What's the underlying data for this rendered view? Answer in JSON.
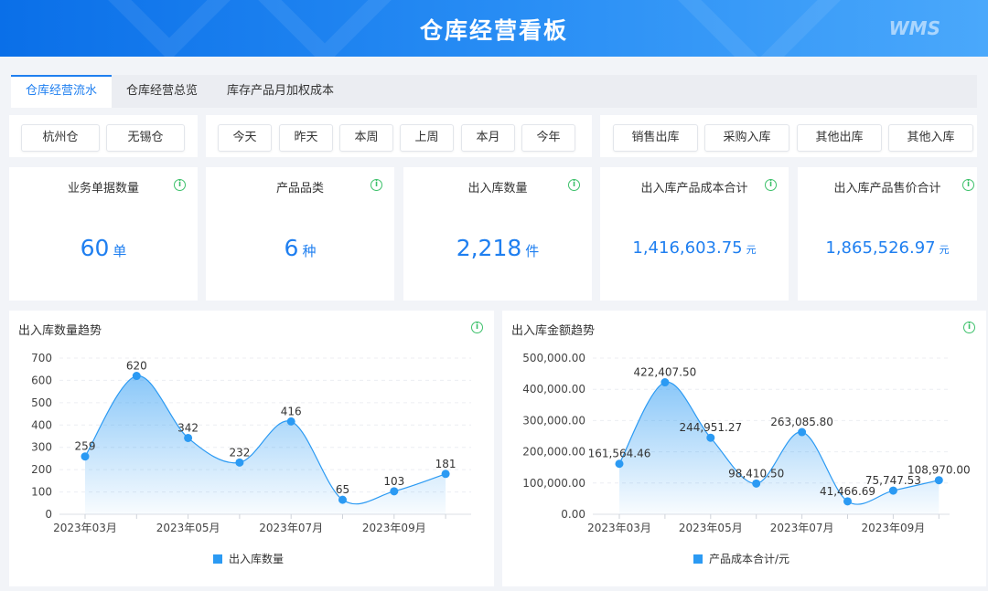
{
  "header": {
    "title": "仓库经营看板",
    "logo": "WMS"
  },
  "tabs": [
    {
      "label": "仓库经营流水",
      "active": true
    },
    {
      "label": "仓库经营总览"
    },
    {
      "label": "库存产品月加权成本"
    }
  ],
  "filters": {
    "warehouses": [
      "杭州仓",
      "无锡仓"
    ],
    "periods": [
      "今天",
      "昨天",
      "本周",
      "上周",
      "本月",
      "今年"
    ],
    "types": [
      "销售出库",
      "采购入库",
      "其他出库",
      "其他入库"
    ]
  },
  "kpis": [
    {
      "label": "业务单据数量",
      "value": "60",
      "unit": "单"
    },
    {
      "label": "产品品类",
      "value": "6",
      "unit": "种"
    },
    {
      "label": "出入库数量",
      "value": "2,218",
      "unit": "件"
    },
    {
      "label": "出入库产品成本合计",
      "value": "1,416,603.75",
      "unit": "元"
    },
    {
      "label": "出入库产品售价合计",
      "value": "1,865,526.97",
      "unit": "元"
    }
  ],
  "colors": {
    "accent": "#1f7ff0",
    "series": "#2b9af3",
    "info": "#3cc06a"
  },
  "chart_data": [
    {
      "type": "area",
      "title": "出入库数量趋势",
      "smooth": true,
      "x_labels": [
        "2023年03月",
        "",
        "2023年05月",
        "",
        "2023年07月",
        "",
        "2023年09月",
        ""
      ],
      "y_ticks": [
        "0",
        "100",
        "200",
        "300",
        "400",
        "500",
        "600",
        "700"
      ],
      "ylim": [
        0,
        700
      ],
      "grid": "dashed horizontal",
      "legend": "bottom",
      "series": [
        {
          "name": "出入库数量",
          "values": [
            259,
            620,
            342,
            232,
            416,
            65,
            103,
            181
          ],
          "labels": [
            "259",
            "620",
            "342",
            "232",
            "416",
            "65",
            "103",
            "181"
          ]
        }
      ]
    },
    {
      "type": "area",
      "title": "出入库金额趋势",
      "smooth": true,
      "x_labels": [
        "2023年03月",
        "",
        "2023年05月",
        "",
        "2023年07月",
        "",
        "2023年09月",
        ""
      ],
      "y_ticks": [
        "0.00",
        "100,000.00",
        "200,000.00",
        "300,000.00",
        "400,000.00",
        "500,000.00"
      ],
      "ylim": [
        0,
        500000
      ],
      "grid": "dashed horizontal",
      "legend": "bottom",
      "series": [
        {
          "name": "产品成本合计/元",
          "values": [
            161564.46,
            422407.5,
            244951.27,
            98410.5,
            263085.8,
            41466.69,
            75747.53,
            108970.0
          ],
          "labels": [
            "161,564.46",
            "422,407.50",
            "244,951.27",
            "98,410.50",
            "263,085.80",
            "41,466.69",
            "75,747.53",
            "108,970.00"
          ]
        }
      ]
    }
  ]
}
